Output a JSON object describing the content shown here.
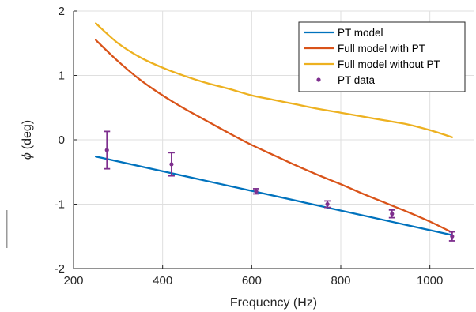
{
  "chart_data": {
    "type": "line",
    "xlabel": "Frequency (Hz)",
    "ylabel_symbol": "ϕ",
    "ylabel_unit": "(deg)",
    "xlim": [
      200,
      1100
    ],
    "ylim": [
      -2,
      2
    ],
    "xticks": [
      200,
      400,
      600,
      800,
      1000
    ],
    "yticks": [
      -2,
      -1,
      0,
      1,
      2
    ],
    "xtick_labels": [
      "200",
      "400",
      "600",
      "800",
      "1000"
    ],
    "ytick_labels": [
      "-2",
      "-1",
      "0",
      "1",
      "2"
    ],
    "grid": true,
    "legend_position": "top-right",
    "series": [
      {
        "name": "PT model",
        "kind": "line",
        "color": "#0072BD",
        "x": [
          250,
          1050
        ],
        "y": [
          -0.26,
          -1.48
        ]
      },
      {
        "name": "Full model with PT",
        "kind": "line",
        "color": "#D95319",
        "x": [
          250,
          300,
          350,
          400,
          450,
          500,
          550,
          600,
          650,
          700,
          750,
          800,
          850,
          900,
          950,
          1000,
          1050
        ],
        "y": [
          1.55,
          1.22,
          0.93,
          0.69,
          0.48,
          0.29,
          0.1,
          -0.08,
          -0.24,
          -0.4,
          -0.55,
          -0.69,
          -0.84,
          -0.98,
          -1.12,
          -1.27,
          -1.44
        ]
      },
      {
        "name": "Full model without PT",
        "kind": "line",
        "color": "#EDB120",
        "x": [
          250,
          300,
          350,
          400,
          450,
          500,
          550,
          600,
          650,
          700,
          750,
          800,
          850,
          900,
          950,
          1000,
          1050
        ],
        "y": [
          1.81,
          1.5,
          1.28,
          1.12,
          0.99,
          0.88,
          0.79,
          0.69,
          0.62,
          0.55,
          0.48,
          0.42,
          0.36,
          0.3,
          0.24,
          0.15,
          0.04
        ]
      },
      {
        "name": "PT data",
        "kind": "errorbar",
        "color": "#7E2F8E",
        "x": [
          275,
          420,
          610,
          770,
          915,
          1050
        ],
        "y": [
          -0.16,
          -0.38,
          -0.8,
          -1.0,
          -1.15,
          -1.5
        ],
        "err": [
          0.29,
          0.18,
          0.04,
          0.05,
          0.06,
          0.07
        ]
      }
    ]
  }
}
